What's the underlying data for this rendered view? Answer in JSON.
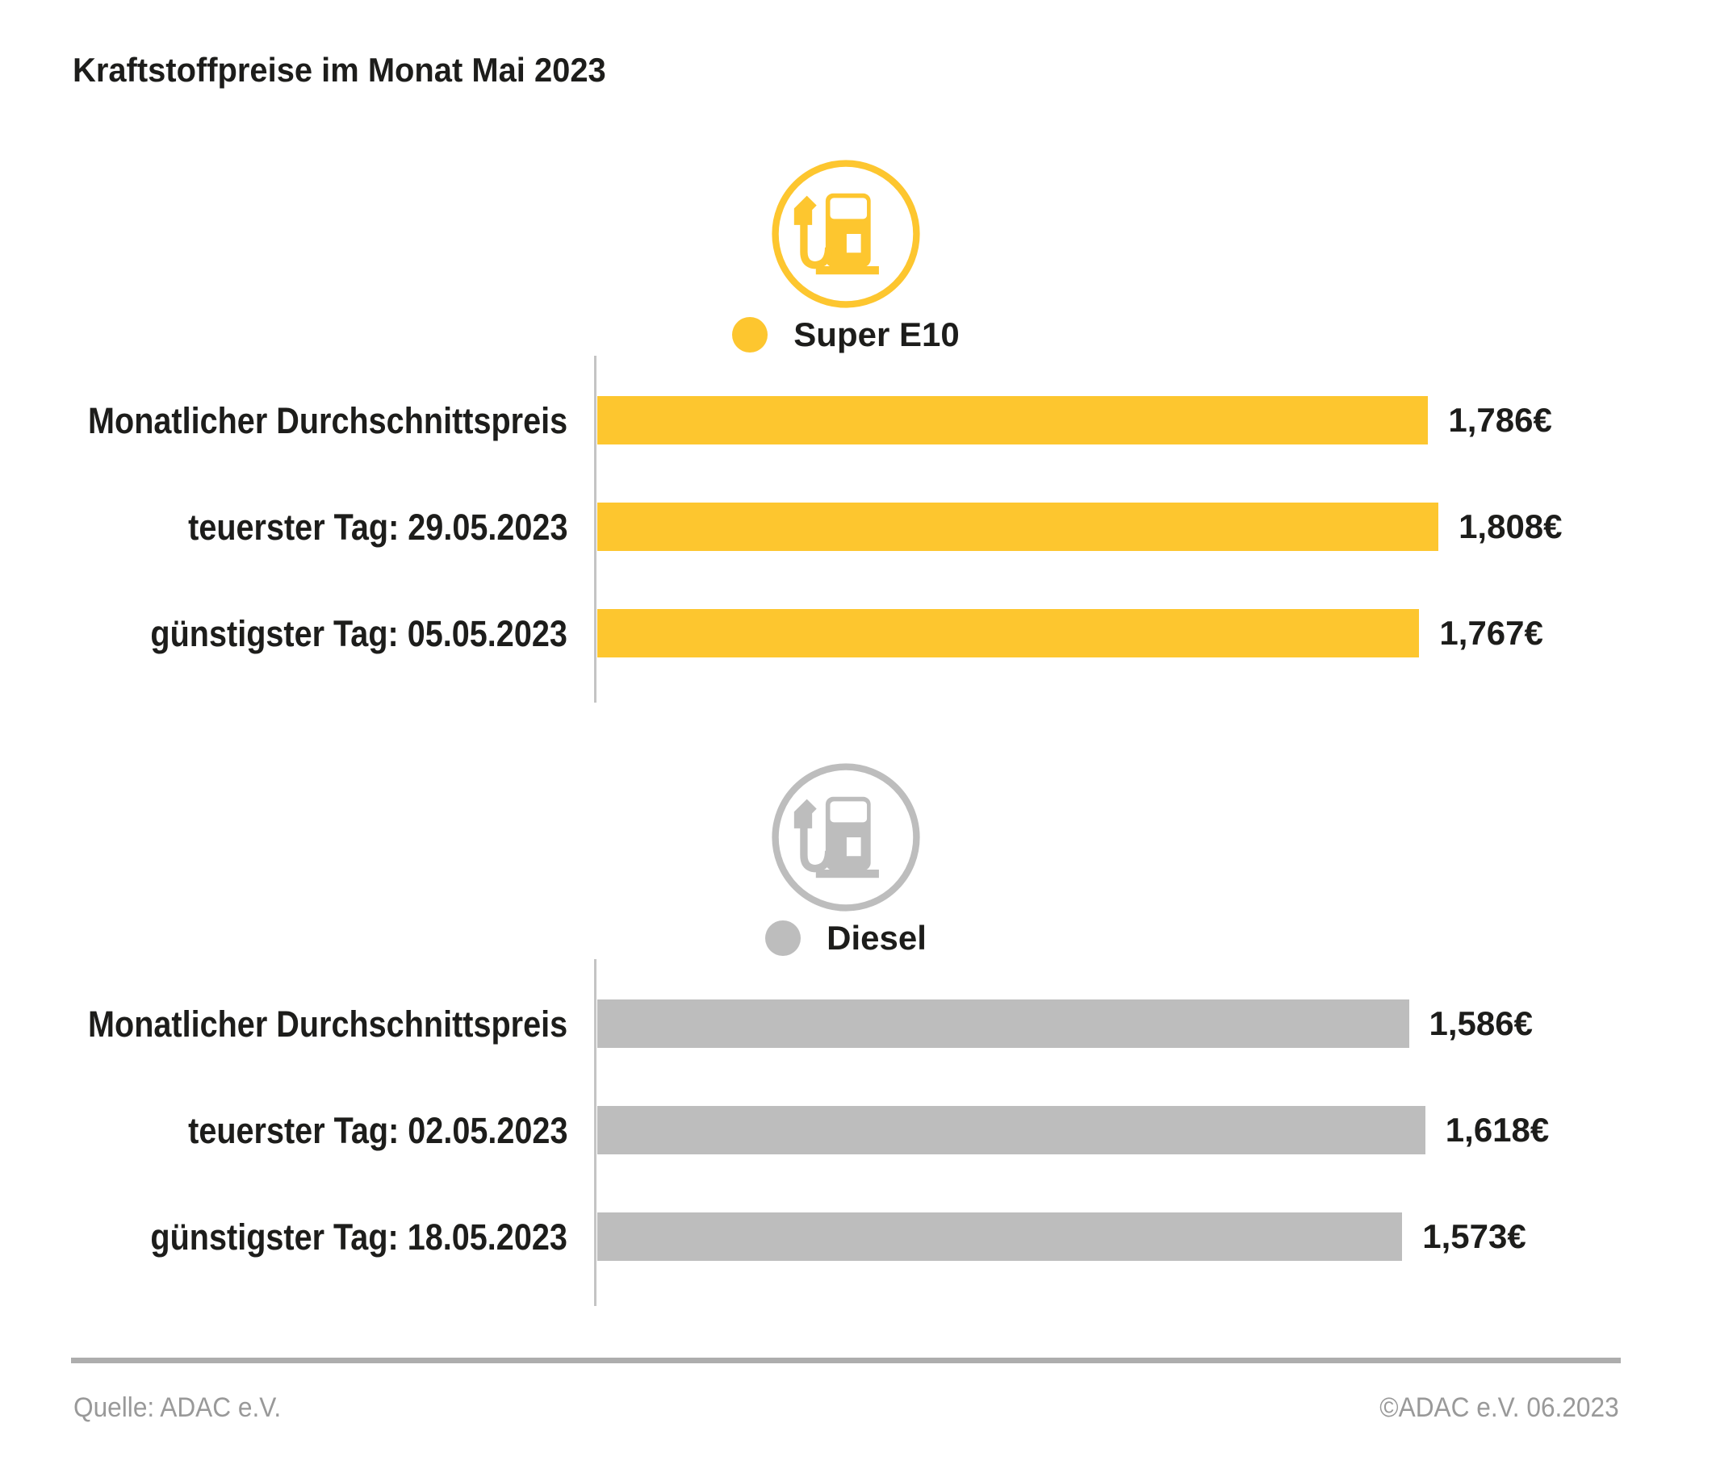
{
  "title": "Kraftstoffpreise im Monat Mai 2023",
  "chart_data": [
    {
      "type": "bar",
      "orientation": "horizontal",
      "legend": "Super E10",
      "color": "#FDC62F",
      "categories": [
        "Monatlicher Durchschnittspreis",
        "teuerster Tag: 29.05.2023",
        "günstigster Tag: 05.05.2023"
      ],
      "values": [
        1.786,
        1.808,
        1.767
      ],
      "value_labels": [
        "1,786€",
        "1,808€",
        "1,767€"
      ],
      "xlim": [
        0,
        2.2
      ],
      "grid": false,
      "legend_position": "top-center"
    },
    {
      "type": "bar",
      "orientation": "horizontal",
      "legend": "Diesel",
      "color": "#BDBDBD",
      "categories": [
        "Monatlicher Durchschnittspreis",
        "teuerster Tag: 02.05.2023",
        "günstigster Tag: 18.05.2023"
      ],
      "values": [
        1.586,
        1.618,
        1.573
      ],
      "value_labels": [
        "1,586€",
        "1,618€",
        "1,573€"
      ],
      "xlim": [
        0,
        2.0
      ],
      "grid": false,
      "legend_position": "top-center"
    }
  ],
  "icons": {
    "section_icon": "fuel-pump-in-circle"
  },
  "colors": {
    "super_e10": "#FDC62F",
    "diesel": "#BDBDBD",
    "text": "#1D1D1B",
    "axis_line": "#C4C4C4",
    "footer_rule": "#ADADAD",
    "footer_text": "#999999"
  },
  "footer": {
    "source": "Quelle: ADAC e.V.",
    "copyright": "©ADAC e.V. 06.2023"
  }
}
